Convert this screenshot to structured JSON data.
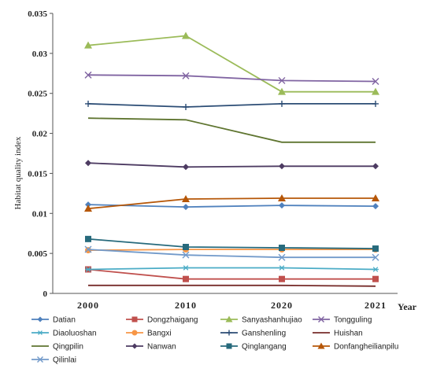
{
  "chart_data": {
    "type": "line",
    "title": "",
    "xlabel": "Year",
    "ylabel": "Habitat quality index",
    "x": [
      "2000",
      "2010",
      "2020",
      "2021"
    ],
    "ylim": [
      0,
      0.035
    ],
    "yticks": [
      "0",
      "0.005",
      "0.01",
      "0.015",
      "0.02",
      "0.025",
      "0.03",
      "0.035"
    ],
    "grid": false,
    "legend_position": "bottom",
    "series": [
      {
        "name": "Datian",
        "values": [
          0.0111,
          0.0108,
          0.011,
          0.0109
        ],
        "color": "#4F81BD",
        "marker": "diamond"
      },
      {
        "name": "Dongzhaigang",
        "values": [
          0.003,
          0.0018,
          0.0018,
          0.0018
        ],
        "color": "#C0504D",
        "marker": "square"
      },
      {
        "name": "Sanyashanhujiao",
        "values": [
          0.031,
          0.0322,
          0.0252,
          0.0252
        ],
        "color": "#9BBB59",
        "marker": "triangle"
      },
      {
        "name": "Tongguling",
        "values": [
          0.0273,
          0.0272,
          0.0266,
          0.0265
        ],
        "color": "#8064A2",
        "marker": "x"
      },
      {
        "name": "Diaoluoshan",
        "values": [
          0.003,
          0.0032,
          0.0032,
          0.003
        ],
        "color": "#4BACC6",
        "marker": "asterisk"
      },
      {
        "name": "Bangxi",
        "values": [
          0.0054,
          0.0055,
          0.0055,
          0.0055
        ],
        "color": "#F79646",
        "marker": "circle"
      },
      {
        "name": "Ganshenling",
        "values": [
          0.0237,
          0.0233,
          0.0237,
          0.0237
        ],
        "color": "#2C4D75",
        "marker": "plus"
      },
      {
        "name": "Huishan",
        "values": [
          0.001,
          0.001,
          0.001,
          0.0009
        ],
        "color": "#772C2A",
        "marker": "none"
      },
      {
        "name": "Qingpilin",
        "values": [
          0.0219,
          0.0217,
          0.0189,
          0.0189
        ],
        "color": "#5F7530",
        "marker": "none"
      },
      {
        "name": "Nanwan",
        "values": [
          0.0163,
          0.0158,
          0.0159,
          0.0159
        ],
        "color": "#4D3B62",
        "marker": "diamond"
      },
      {
        "name": "Qinglangang",
        "values": [
          0.0068,
          0.0058,
          0.0057,
          0.0056
        ],
        "color": "#276A7C",
        "marker": "square"
      },
      {
        "name": "Donfangheilianpilu",
        "values": [
          0.0106,
          0.0118,
          0.0119,
          0.0119
        ],
        "color": "#B65708",
        "marker": "triangle"
      },
      {
        "name": "Qilinlai",
        "values": [
          0.0055,
          0.0048,
          0.0045,
          0.0045
        ],
        "color": "#729ACA",
        "marker": "x"
      }
    ]
  }
}
